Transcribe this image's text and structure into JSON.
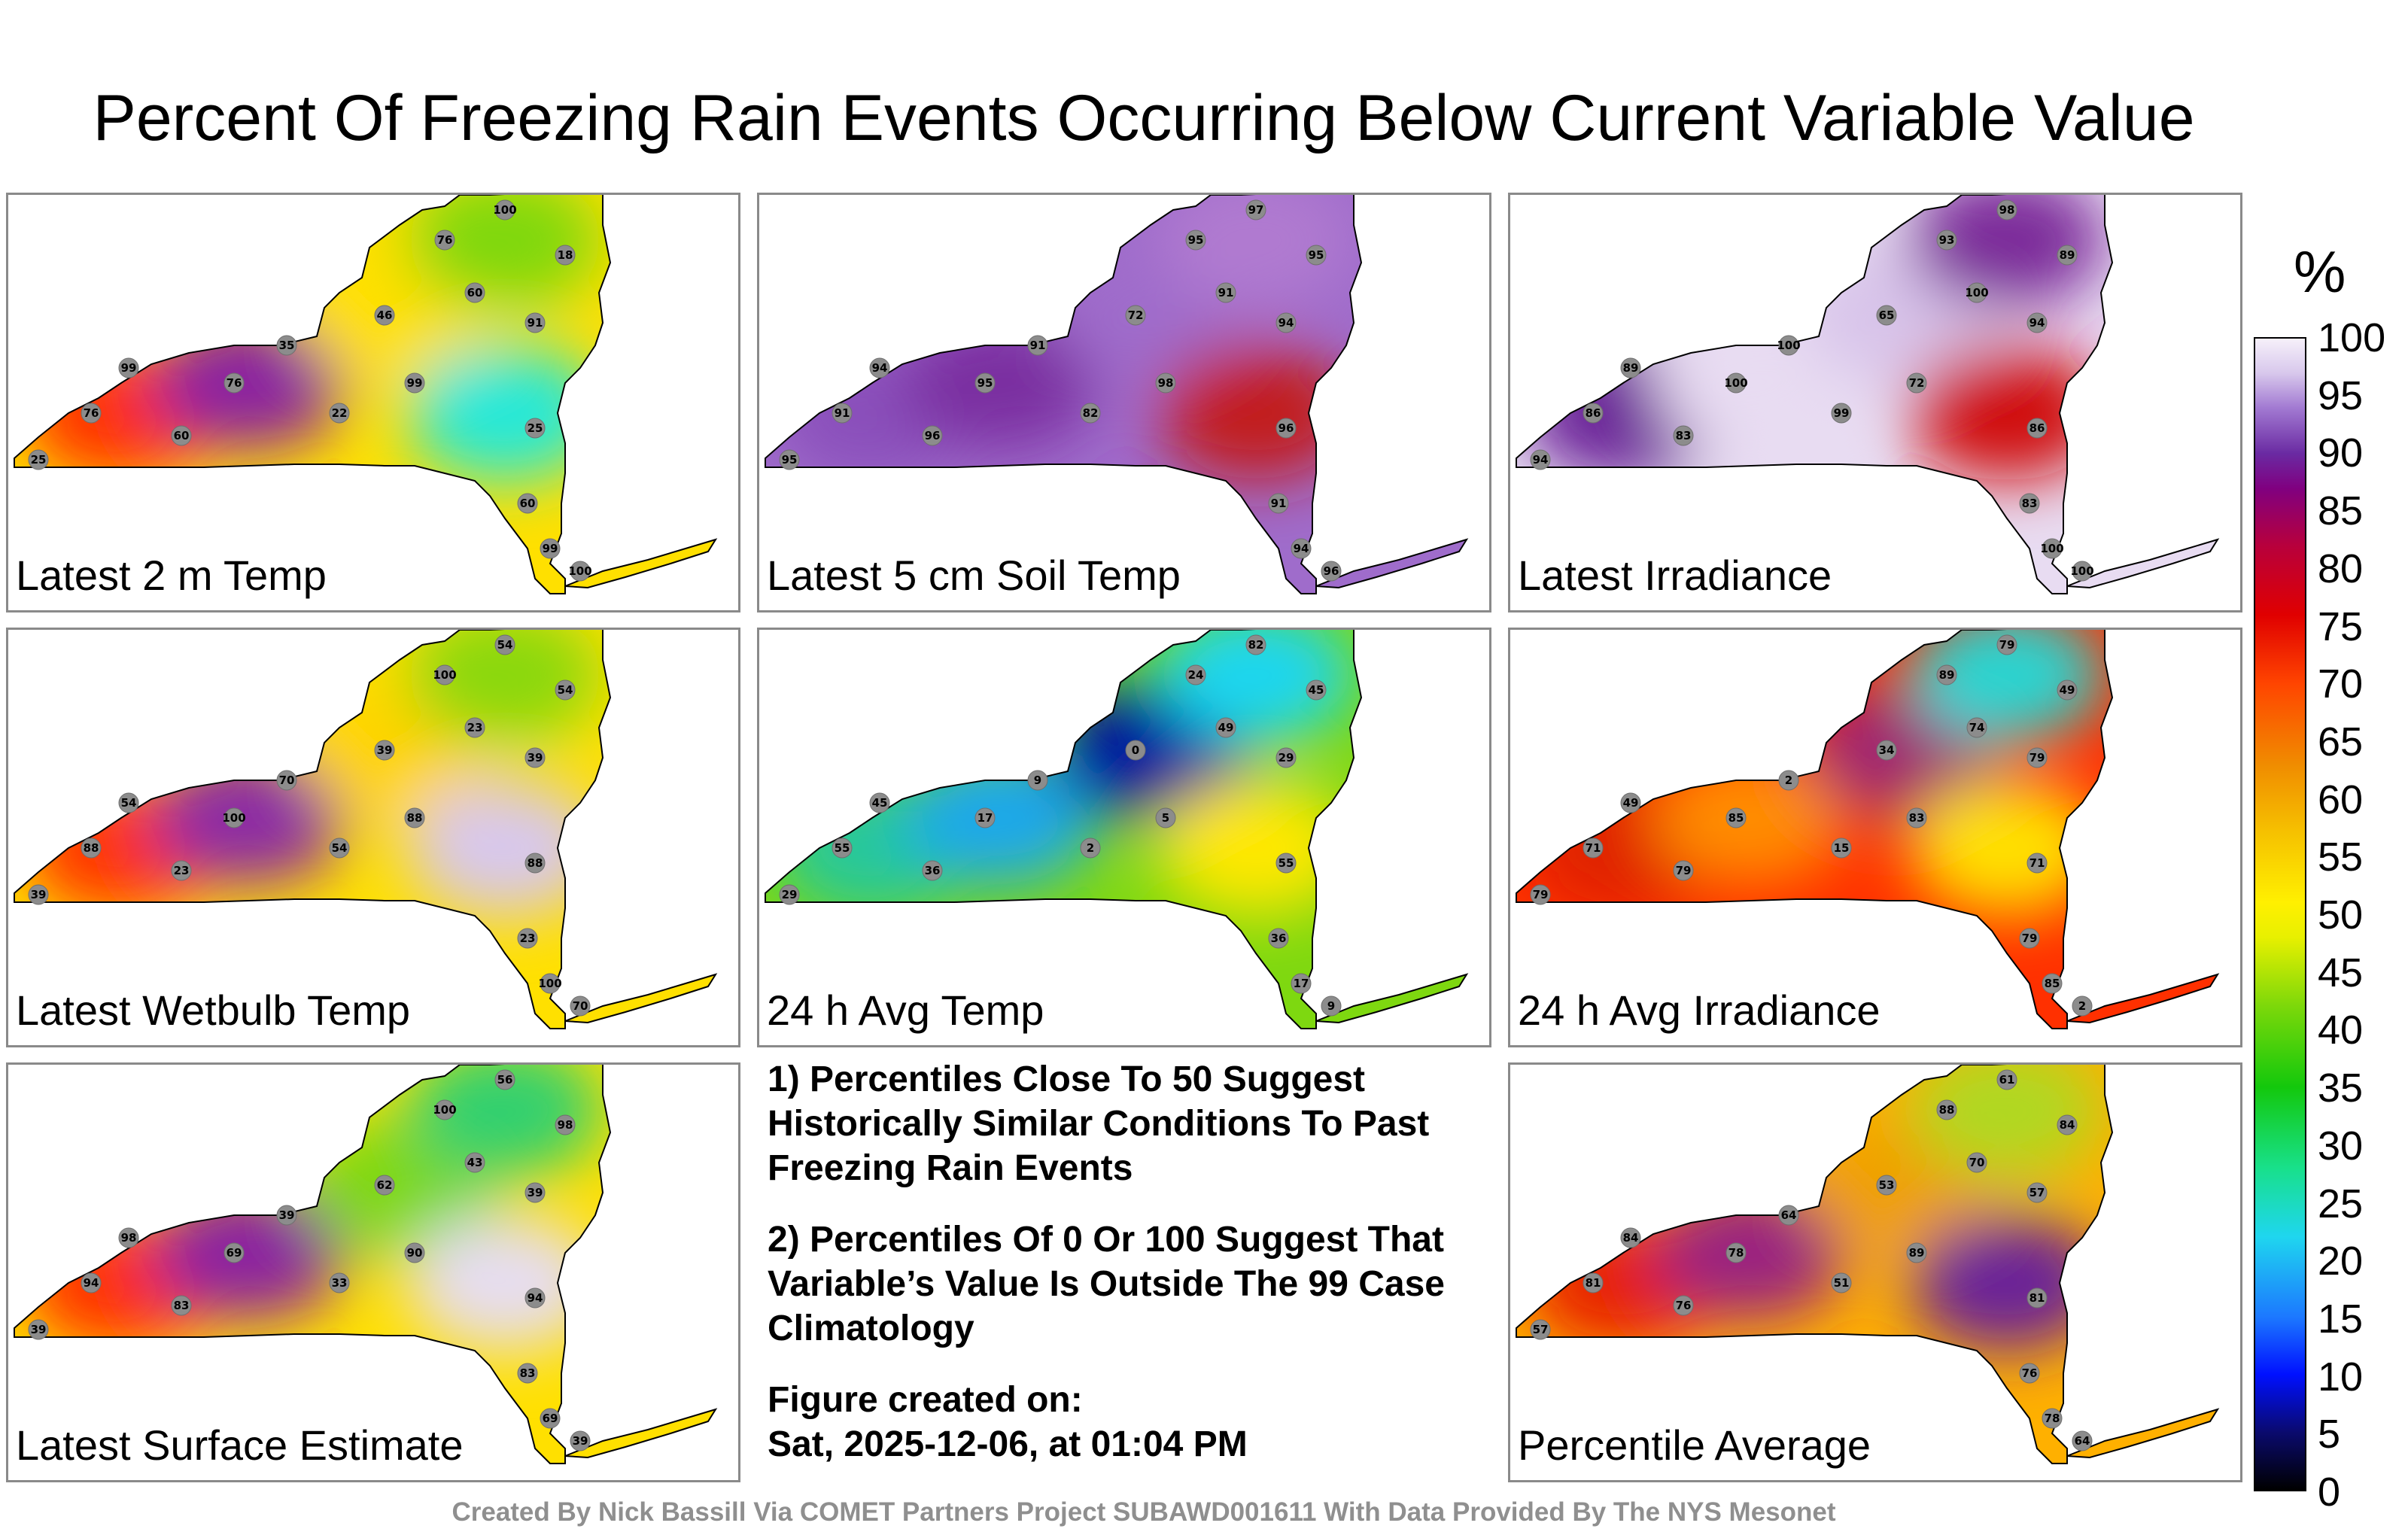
{
  "title": "Percent Of Freezing Rain Events Occurring Below Current Variable Value",
  "colorbar": {
    "unit": "%",
    "ticks": [
      "100",
      "95",
      "90",
      "85",
      "80",
      "75",
      "70",
      "65",
      "60",
      "55",
      "50",
      "45",
      "40",
      "35",
      "30",
      "25",
      "20",
      "15",
      "10",
      "5",
      "0"
    ],
    "stops": [
      "#000000",
      "#0010ff",
      "#1fd6ef",
      "#13c80c",
      "#fff000",
      "#f08c00",
      "#e00000",
      "#800080",
      "#f6f0fa"
    ]
  },
  "panels": [
    {
      "label": "Latest 2 m Temp",
      "palette": [
        "#ffe000",
        "#ff3000",
        "#8b20a0",
        "#ffe000",
        "#7fd80a",
        "#25e8d8"
      ],
      "values": [
        "25",
        "76",
        "99",
        "60",
        "76",
        "35",
        "22",
        "46",
        "99",
        "76",
        "60",
        "100",
        "91",
        "25",
        "18",
        "60",
        "99",
        "100"
      ]
    },
    {
      "label": "Latest 5 cm Soil Temp",
      "palette": [
        "#9f6ccb",
        "#8a4fbb",
        "#7a2ea0",
        "#9f6ccb",
        "#b07ad0",
        "#c21a1a"
      ],
      "values": [
        "95",
        "91",
        "94",
        "96",
        "95",
        "91",
        "82",
        "72",
        "98",
        "95",
        "91",
        "97",
        "94",
        "96"
      ]
    },
    {
      "label": "Latest Irradiance",
      "palette": [
        "#e8dcf2",
        "#6a2398",
        "#e8dcf2",
        "#d8c4ea",
        "#7b2a9a",
        "#d01010"
      ],
      "values": [
        "94",
        "86",
        "89",
        "83",
        "100",
        "100",
        "99",
        "65",
        "72",
        "93",
        "100",
        "98"
      ]
    },
    {
      "label": "Latest Wetbulb Temp",
      "palette": [
        "#ffe000",
        "#ff3500",
        "#8c2ba4",
        "#ffd400",
        "#8ad810",
        "#d8c8ec"
      ],
      "values": [
        "39",
        "88",
        "54",
        "23",
        "100",
        "70",
        "54",
        "39",
        "88",
        "100",
        "23",
        "54"
      ]
    },
    {
      "label": "24 h Avg Temp",
      "palette": [
        "#7ed810",
        "#26c89a",
        "#1aa8ea",
        "#000c9e",
        "#1fd6ef",
        "#ffe800"
      ],
      "values": [
        "29",
        "55",
        "45",
        "36",
        "17",
        "9",
        "2",
        "0",
        "5",
        "24",
        "49",
        "82"
      ]
    },
    {
      "label": "24 h Avg Irradiance",
      "palette": [
        "#ff3000",
        "#e02000",
        "#ff8c00",
        "#a02070",
        "#2ad4d0",
        "#ffe000"
      ],
      "values": [
        "79",
        "71",
        "49",
        "79",
        "85",
        "2",
        "15",
        "34",
        "83",
        "89",
        "74",
        "79"
      ]
    },
    {
      "label": "Latest Surface Estimate",
      "palette": [
        "#ffe000",
        "#ff3000",
        "#8b20a0",
        "#7fd80a",
        "#30d070",
        "#e6ddf0"
      ],
      "values": [
        "39",
        "94",
        "98",
        "83",
        "69",
        "39",
        "33",
        "62",
        "90",
        "100",
        "43",
        "56"
      ]
    },
    {
      "label": "Percentile Average",
      "palette": [
        "#ffb000",
        "#e82000",
        "#9a2080",
        "#f0a000",
        "#b0d820",
        "#6a2398"
      ],
      "values": [
        "57",
        "81",
        "84",
        "76",
        "78",
        "64",
        "51",
        "53",
        "89",
        "88",
        "70",
        "61"
      ]
    }
  ],
  "notes": [
    "1) Percentiles Close To 50 Suggest Historically Similar Conditions To Past Freezing Rain Events",
    "2) Percentiles Of 0 Or 100 Suggest That Variable’s Value Is Outside The 99 Case Climatology"
  ],
  "figure_created_label": "Figure created on:",
  "figure_created_date": "Sat, 2025-12-06, at 01:04 PM",
  "credit": "Created By Nick Bassill Via COMET Partners Project SUBAWD001611 With Data Provided By The NYS Mesonet"
}
